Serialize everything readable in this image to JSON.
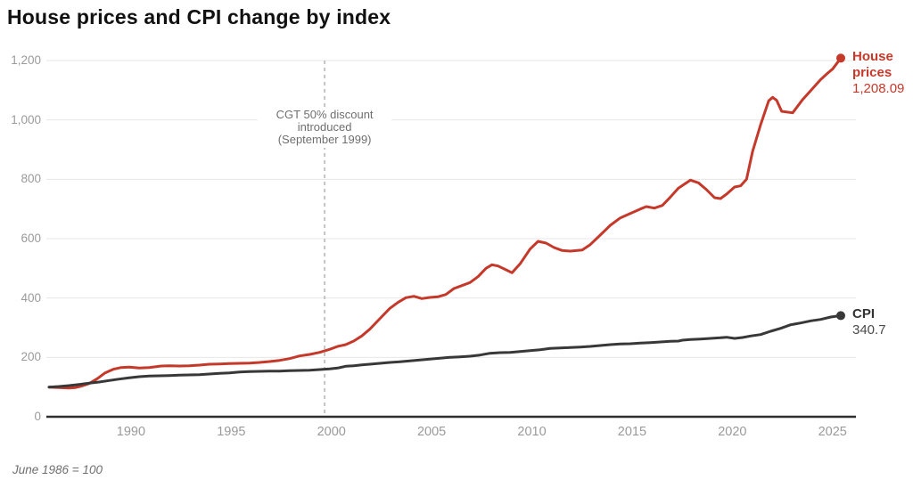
{
  "title": "House prices and CPI change by index",
  "footnote": "June 1986 = 100",
  "annotation": {
    "line1": "CGT 50% discount",
    "line2": "introduced",
    "line3": "(September 1999)"
  },
  "series_labels": {
    "house": {
      "name": "House prices",
      "value": "1,208.09"
    },
    "cpi": {
      "name": "CPI",
      "value": "340.7"
    }
  },
  "colors": {
    "house": "#c5392b",
    "cpi": "#383838",
    "grid": "#e7e7e7",
    "axis": "#2f2f2f",
    "dashed": "#c4c4c4",
    "tick_label": "#9a9a9a",
    "annotation_text": "#6f6f6f"
  },
  "chart_data": {
    "type": "line",
    "title": "House prices and CPI change by index",
    "note": "June 1986 = 100",
    "xlabel": "",
    "ylabel": "",
    "x_range": [
      1986,
      2025.5
    ],
    "ylim": [
      0,
      1200
    ],
    "grid": "horizontal",
    "legend_position": "right-end-labels",
    "yticks": [
      0,
      200,
      400,
      600,
      800,
      1000,
      1200
    ],
    "ytick_labels": [
      "0",
      "200",
      "400",
      "600",
      "800",
      "1,000",
      "1,200"
    ],
    "xticks": [
      1990,
      1995,
      2000,
      2005,
      2010,
      2015,
      2020,
      2025
    ],
    "annotation_x_year": 1999.75,
    "series": [
      {
        "name": "House prices",
        "color": "#c5392b",
        "end_value": 1208.09,
        "points": [
          [
            1986.0,
            100
          ],
          [
            1986.5,
            98
          ],
          [
            1987.0,
            97
          ],
          [
            1987.3,
            98
          ],
          [
            1987.6,
            103
          ],
          [
            1988.0,
            112
          ],
          [
            1988.4,
            128
          ],
          [
            1988.8,
            148
          ],
          [
            1989.2,
            160
          ],
          [
            1989.6,
            166
          ],
          [
            1990.0,
            167
          ],
          [
            1990.5,
            164
          ],
          [
            1991.0,
            166
          ],
          [
            1991.6,
            171
          ],
          [
            1992.0,
            172
          ],
          [
            1992.5,
            171
          ],
          [
            1993.0,
            172
          ],
          [
            1993.5,
            174
          ],
          [
            1994.0,
            177
          ],
          [
            1994.5,
            178
          ],
          [
            1995.0,
            179
          ],
          [
            1995.5,
            180
          ],
          [
            1996.0,
            181
          ],
          [
            1996.5,
            183
          ],
          [
            1997.0,
            186
          ],
          [
            1997.5,
            190
          ],
          [
            1998.0,
            196
          ],
          [
            1998.5,
            205
          ],
          [
            1999.0,
            210
          ],
          [
            1999.5,
            217
          ],
          [
            2000.0,
            227
          ],
          [
            2000.4,
            237
          ],
          [
            2000.8,
            243
          ],
          [
            2001.2,
            255
          ],
          [
            2001.6,
            272
          ],
          [
            2002.0,
            295
          ],
          [
            2002.5,
            330
          ],
          [
            2003.0,
            365
          ],
          [
            2003.4,
            385
          ],
          [
            2003.8,
            401
          ],
          [
            2004.2,
            406
          ],
          [
            2004.6,
            398
          ],
          [
            2005.0,
            402
          ],
          [
            2005.4,
            404
          ],
          [
            2005.8,
            412
          ],
          [
            2006.2,
            432
          ],
          [
            2006.6,
            442
          ],
          [
            2007.0,
            452
          ],
          [
            2007.4,
            472
          ],
          [
            2007.8,
            500
          ],
          [
            2008.1,
            512
          ],
          [
            2008.4,
            508
          ],
          [
            2008.8,
            495
          ],
          [
            2009.1,
            485
          ],
          [
            2009.5,
            515
          ],
          [
            2010.0,
            565
          ],
          [
            2010.4,
            591
          ],
          [
            2010.8,
            585
          ],
          [
            2011.2,
            570
          ],
          [
            2011.6,
            560
          ],
          [
            2012.0,
            558
          ],
          [
            2012.6,
            562
          ],
          [
            2013.0,
            580
          ],
          [
            2013.5,
            612
          ],
          [
            2014.0,
            645
          ],
          [
            2014.5,
            670
          ],
          [
            2015.0,
            685
          ],
          [
            2015.5,
            700
          ],
          [
            2015.8,
            708
          ],
          [
            2016.2,
            703
          ],
          [
            2016.6,
            712
          ],
          [
            2017.0,
            740
          ],
          [
            2017.4,
            770
          ],
          [
            2018.0,
            797
          ],
          [
            2018.4,
            788
          ],
          [
            2018.8,
            765
          ],
          [
            2019.2,
            738
          ],
          [
            2019.5,
            735
          ],
          [
            2019.8,
            750
          ],
          [
            2020.2,
            774
          ],
          [
            2020.5,
            778
          ],
          [
            2020.8,
            800
          ],
          [
            2021.1,
            894
          ],
          [
            2021.5,
            984
          ],
          [
            2021.9,
            1064
          ],
          [
            2022.1,
            1076
          ],
          [
            2022.3,
            1066
          ],
          [
            2022.55,
            1029
          ],
          [
            2023.1,
            1024
          ],
          [
            2023.6,
            1069
          ],
          [
            2024.0,
            1099
          ],
          [
            2024.5,
            1136
          ],
          [
            2024.8,
            1155
          ],
          [
            2025.1,
            1172
          ],
          [
            2025.5,
            1208.09
          ]
        ]
      },
      {
        "name": "CPI",
        "color": "#383838",
        "end_value": 340.7,
        "points": [
          [
            1986.0,
            100
          ],
          [
            1986.5,
            102
          ],
          [
            1987.0,
            105
          ],
          [
            1987.5,
            109
          ],
          [
            1988.0,
            113
          ],
          [
            1988.5,
            117
          ],
          [
            1989.0,
            122
          ],
          [
            1989.5,
            127
          ],
          [
            1990.0,
            131
          ],
          [
            1990.5,
            135
          ],
          [
            1991.0,
            137
          ],
          [
            1991.5,
            138
          ],
          [
            1992.0,
            139
          ],
          [
            1992.5,
            140
          ],
          [
            1993.0,
            141
          ],
          [
            1993.5,
            142
          ],
          [
            1994.0,
            144
          ],
          [
            1994.5,
            146
          ],
          [
            1995.0,
            148
          ],
          [
            1995.5,
            151
          ],
          [
            1996.0,
            152
          ],
          [
            1996.5,
            153
          ],
          [
            1997.0,
            154
          ],
          [
            1997.5,
            154
          ],
          [
            1998.0,
            155
          ],
          [
            1998.5,
            156
          ],
          [
            1999.0,
            157
          ],
          [
            1999.5,
            159
          ],
          [
            2000.0,
            161
          ],
          [
            2000.4,
            164
          ],
          [
            2000.8,
            170
          ],
          [
            2001.2,
            172
          ],
          [
            2001.6,
            175
          ],
          [
            2002.0,
            177
          ],
          [
            2002.5,
            180
          ],
          [
            2003.0,
            183
          ],
          [
            2003.5,
            185
          ],
          [
            2004.0,
            188
          ],
          [
            2004.5,
            191
          ],
          [
            2005.0,
            194
          ],
          [
            2005.5,
            197
          ],
          [
            2006.0,
            200
          ],
          [
            2006.5,
            202
          ],
          [
            2007.0,
            204
          ],
          [
            2007.5,
            208
          ],
          [
            2008.0,
            214
          ],
          [
            2008.5,
            216
          ],
          [
            2009.0,
            217
          ],
          [
            2009.5,
            220
          ],
          [
            2010.0,
            223
          ],
          [
            2010.5,
            226
          ],
          [
            2011.0,
            230
          ],
          [
            2011.5,
            232
          ],
          [
            2012.0,
            233
          ],
          [
            2012.5,
            235
          ],
          [
            2013.0,
            237
          ],
          [
            2013.5,
            240
          ],
          [
            2014.0,
            243
          ],
          [
            2014.5,
            245
          ],
          [
            2015.0,
            246
          ],
          [
            2015.5,
            248
          ],
          [
            2016.0,
            250
          ],
          [
            2016.5,
            252
          ],
          [
            2017.0,
            254
          ],
          [
            2017.4,
            255
          ],
          [
            2017.6,
            258
          ],
          [
            2018.0,
            260
          ],
          [
            2018.5,
            262
          ],
          [
            2019.0,
            264
          ],
          [
            2019.5,
            266
          ],
          [
            2019.8,
            268
          ],
          [
            2020.2,
            264
          ],
          [
            2020.6,
            267
          ],
          [
            2021.0,
            272
          ],
          [
            2021.5,
            277
          ],
          [
            2022.0,
            288
          ],
          [
            2022.5,
            298
          ],
          [
            2023.0,
            310
          ],
          [
            2023.5,
            316
          ],
          [
            2024.0,
            323
          ],
          [
            2024.5,
            328
          ],
          [
            2025.0,
            336
          ],
          [
            2025.5,
            340.7
          ]
        ]
      }
    ]
  }
}
